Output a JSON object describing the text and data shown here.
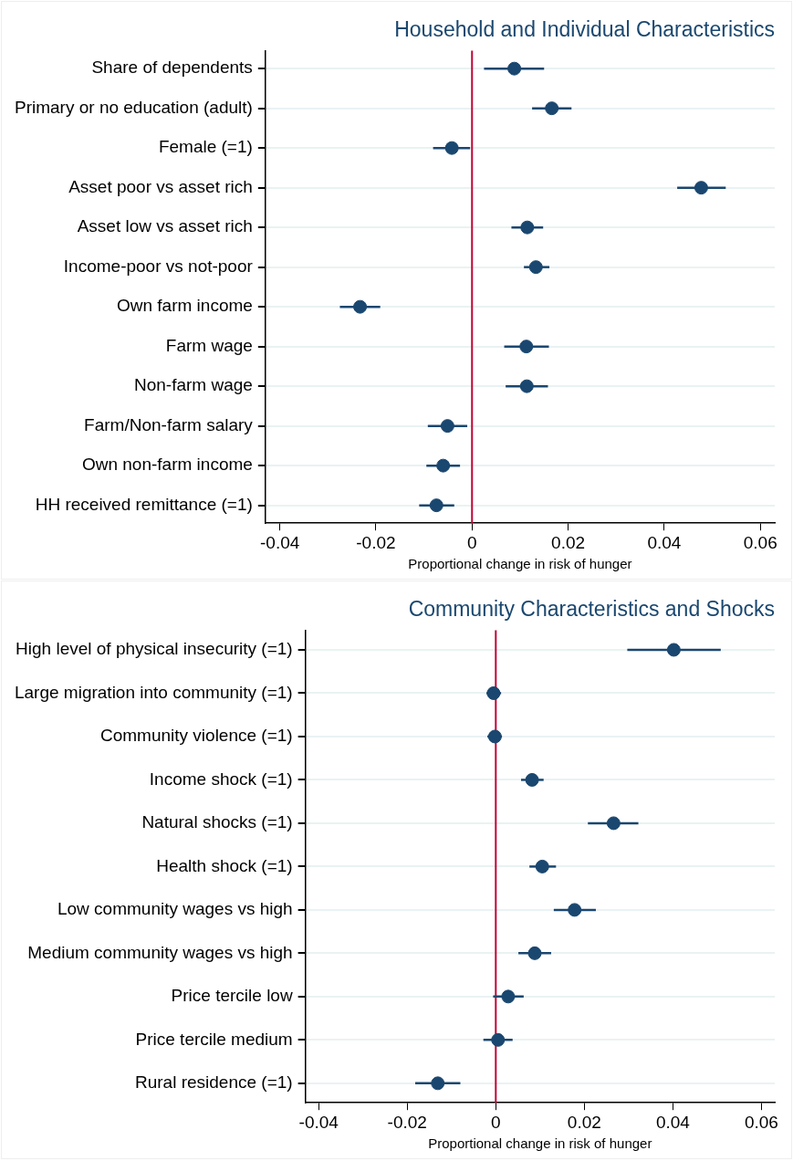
{
  "chart_data": [
    {
      "type": "scatter",
      "orientation": "horizontal",
      "title": "Household and Individual Characteristics",
      "xlabel": "Proportional change in risk of hunger",
      "categories": [
        "Share of dependents",
        "Primary or no education (adult)",
        "Female (=1)",
        "Asset poor vs asset rich",
        "Asset low vs asset rich",
        "Income-poor vs not-poor",
        "Own farm income",
        "Farm wage",
        "Non-farm wage",
        "Farm/Non-farm salary",
        "Own non-farm income",
        "HH received remittance (=1)"
      ],
      "values": [
        0.0088,
        0.0166,
        -0.0042,
        0.0477,
        0.0115,
        0.0133,
        -0.0233,
        0.0113,
        0.0114,
        -0.0051,
        -0.006,
        -0.0074
      ],
      "errors": [
        [
          0.0025,
          0.015
        ],
        [
          0.0125,
          0.0207
        ],
        [
          -0.0081,
          -0.0004
        ],
        [
          0.0427,
          0.0528
        ],
        [
          0.0082,
          0.0148
        ],
        [
          0.0108,
          0.0161
        ],
        [
          -0.0275,
          -0.0191
        ],
        [
          0.0067,
          0.016
        ],
        [
          0.007,
          0.0158
        ],
        [
          -0.0092,
          -0.001
        ],
        [
          -0.0095,
          -0.0025
        ],
        [
          -0.011,
          -0.0037
        ]
      ],
      "color": "#1a476f",
      "marker": "circle",
      "grid": "y",
      "legend": false,
      "xlim": [
        -0.043,
        0.063
      ],
      "xticks": [
        -0.04,
        -0.02,
        0,
        0.02,
        0.04,
        0.06
      ],
      "ref_lines": [
        {
          "axis": "x",
          "value": 0,
          "color": "#c10534"
        }
      ]
    },
    {
      "type": "scatter",
      "orientation": "horizontal",
      "title": "Community Characteristics and Shocks",
      "xlabel": "Proportional change in risk of hunger",
      "categories": [
        "High level of physical insecurity (=1)",
        "Large migration into community (=1)",
        "Community violence (=1)",
        "Income shock (=1)",
        "Natural shocks (=1)",
        "Health shock (=1)",
        "Low community wages vs high",
        "Medium community wages vs high",
        "Price tercile low",
        "Price tercile medium",
        "Rural residence (=1)"
      ],
      "values": [
        0.0402,
        -0.0005,
        -0.0002,
        0.0082,
        0.0266,
        0.0105,
        0.0178,
        0.0088,
        0.0028,
        0.0005,
        -0.0131
      ],
      "errors": [
        [
          0.0297,
          0.0508
        ],
        [
          -0.0021,
          0.0012
        ],
        [
          -0.0019,
          0.0014
        ],
        [
          0.0057,
          0.0108
        ],
        [
          0.0208,
          0.0322
        ],
        [
          0.0076,
          0.0136
        ],
        [
          0.0131,
          0.0226
        ],
        [
          0.0051,
          0.0125
        ],
        [
          -0.0006,
          0.0063
        ],
        [
          -0.0028,
          0.0038
        ],
        [
          -0.0182,
          -0.008
        ]
      ],
      "color": "#1a476f",
      "marker": "circle",
      "grid": "y",
      "legend": false,
      "xlim": [
        -0.043,
        0.063
      ],
      "xticks": [
        -0.04,
        -0.02,
        0,
        0.02,
        0.04,
        0.06
      ],
      "ref_lines": [
        {
          "axis": "x",
          "value": 0,
          "color": "#c10534"
        }
      ]
    }
  ]
}
